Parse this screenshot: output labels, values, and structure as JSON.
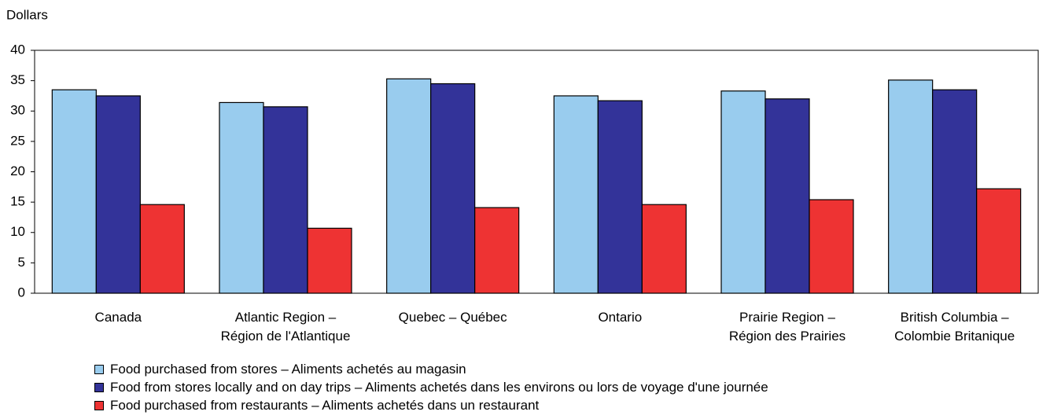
{
  "chart_data": {
    "type": "bar",
    "y_label": "Dollars",
    "categories": [
      "Canada",
      "Atlantic Region –\nRégion de l'Atlantique",
      "Quebec – Québec",
      "Ontario",
      "Prairie Region –\nRégion des Prairies",
      "British Columbia –\nColombie Britanique"
    ],
    "series": [
      {
        "name": "Food purchased from stores – Aliments achetés au magasin",
        "color": "#99ccee",
        "values": [
          33.5,
          31.4,
          35.3,
          32.5,
          33.3,
          35.1
        ]
      },
      {
        "name": "Food from stores locally and on day trips – Aliments achetés dans les environs ou lors de voyage d'une journée",
        "color": "#333399",
        "values": [
          32.5,
          30.7,
          34.5,
          31.7,
          32.0,
          33.5
        ]
      },
      {
        "name": "Food purchased from restaurants – Aliments achetés dans un restaurant",
        "color": "#ee3333",
        "values": [
          14.6,
          10.7,
          14.1,
          14.6,
          15.4,
          17.2
        ]
      }
    ],
    "ylim": [
      0,
      40
    ],
    "yticks": [
      0,
      5,
      10,
      15,
      20,
      25,
      30,
      35,
      40
    ],
    "grid": false
  }
}
